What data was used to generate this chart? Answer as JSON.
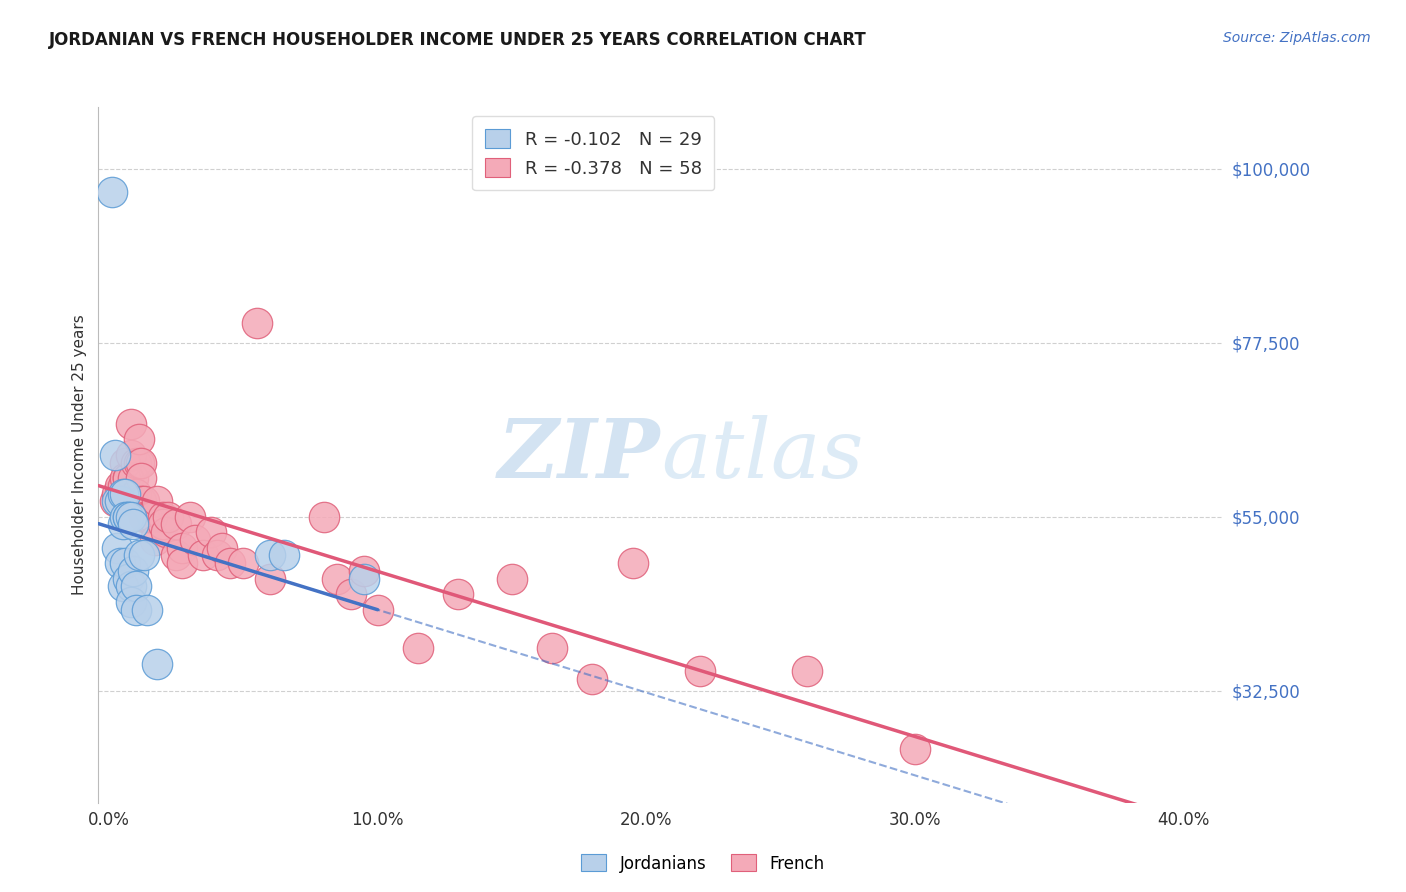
{
  "title": "JORDANIAN VS FRENCH HOUSEHOLDER INCOME UNDER 25 YEARS CORRELATION CHART",
  "source": "Source: ZipAtlas.com",
  "ylabel": "Householder Income Under 25 years",
  "ylim": [
    18000,
    108000
  ],
  "xlim": [
    -0.004,
    0.415
  ],
  "ytick_vals": [
    32500,
    55000,
    77500,
    100000
  ],
  "ytick_labels": [
    "$32,500",
    "$55,000",
    "$77,500",
    "$100,000"
  ],
  "xtick_vals": [
    0.0,
    0.1,
    0.2,
    0.3,
    0.4
  ],
  "xtick_labels": [
    "0.0%",
    "10.0%",
    "20.0%",
    "30.0%",
    "40.0%"
  ],
  "jordanian_R": "-0.102",
  "jordanian_N": "29",
  "french_R": "-0.378",
  "french_N": "58",
  "jordan_face_color": "#b8d0ea",
  "jordan_edge_color": "#5b9bd5",
  "french_face_color": "#f4aab8",
  "french_edge_color": "#e0607a",
  "jordan_line_color": "#4472c4",
  "french_line_color": "#e05878",
  "grid_color": "#d0d0d0",
  "bg_color": "#ffffff",
  "watermark_color": "#ccdff0",
  "legend_text_color": "#e05878",
  "jordanian_x": [
    0.001,
    0.002,
    0.003,
    0.003,
    0.004,
    0.004,
    0.005,
    0.005,
    0.005,
    0.006,
    0.006,
    0.006,
    0.007,
    0.007,
    0.007,
    0.008,
    0.008,
    0.008,
    0.009,
    0.009,
    0.01,
    0.01,
    0.011,
    0.013,
    0.014,
    0.018,
    0.06,
    0.065,
    0.095
  ],
  "jordanian_y": [
    97000,
    63000,
    57000,
    51000,
    57000,
    49000,
    58000,
    54000,
    46000,
    58000,
    55000,
    49000,
    55000,
    55000,
    47000,
    55000,
    46000,
    44000,
    54000,
    48000,
    46000,
    43000,
    50000,
    50000,
    43000,
    36000,
    50000,
    50000,
    47000
  ],
  "french_x": [
    0.002,
    0.003,
    0.004,
    0.005,
    0.006,
    0.006,
    0.007,
    0.007,
    0.008,
    0.008,
    0.009,
    0.009,
    0.01,
    0.01,
    0.011,
    0.011,
    0.012,
    0.012,
    0.012,
    0.013,
    0.013,
    0.014,
    0.015,
    0.016,
    0.017,
    0.018,
    0.02,
    0.02,
    0.021,
    0.022,
    0.025,
    0.025,
    0.027,
    0.027,
    0.03,
    0.032,
    0.035,
    0.038,
    0.04,
    0.042,
    0.045,
    0.05,
    0.055,
    0.06,
    0.08,
    0.085,
    0.09,
    0.095,
    0.1,
    0.115,
    0.13,
    0.15,
    0.165,
    0.18,
    0.195,
    0.22,
    0.26,
    0.3
  ],
  "french_y": [
    57000,
    58000,
    59000,
    59000,
    62000,
    60000,
    60000,
    60000,
    63000,
    67000,
    60000,
    57000,
    62000,
    58000,
    62000,
    65000,
    62000,
    60000,
    57000,
    57000,
    55000,
    55000,
    55000,
    55000,
    52000,
    57000,
    55000,
    54000,
    53000,
    55000,
    54000,
    50000,
    51000,
    49000,
    55000,
    52000,
    50000,
    53000,
    50000,
    51000,
    49000,
    49000,
    80000,
    47000,
    55000,
    47000,
    45000,
    48000,
    43000,
    38000,
    45000,
    47000,
    38000,
    34000,
    49000,
    35000,
    35000,
    25000
  ]
}
